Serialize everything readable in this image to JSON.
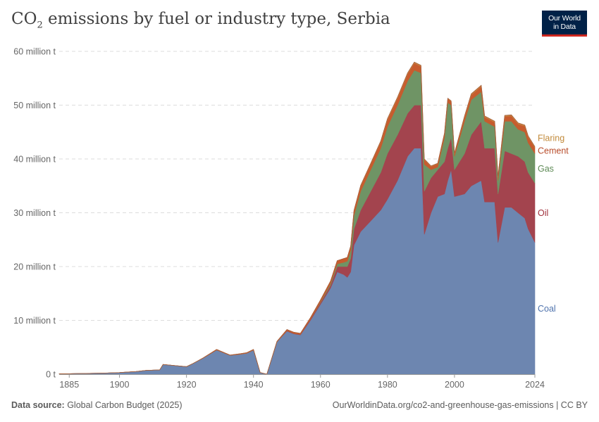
{
  "header": {
    "title_before": "CO",
    "title_sub": "2",
    "title_after": " emissions by fuel or industry type, Serbia",
    "logo_line1": "Our World",
    "logo_line2": "in Data"
  },
  "footer": {
    "source_label": "Data source:",
    "source_value": " Global Carbon Budget (2025)",
    "url": "OurWorldinData.org/co2-and-greenhouse-gas-emissions | CC BY"
  },
  "colors": {
    "coal": "#6d86b0",
    "oil": "#a3444e",
    "gas": "#6f9465",
    "cement": "#c75c2e",
    "flaring": "#c7813f",
    "flaring_label": "#c28a3a",
    "cement_label": "#b84c2a",
    "gas_label": "#5d8a55",
    "oil_label": "#a0303c",
    "coal_label": "#4f73ad",
    "grid": "#dddddd",
    "axis_text": "#666666"
  },
  "chart_data": {
    "type": "area",
    "stacked": true,
    "ylim": [
      0,
      60
    ],
    "xlim": [
      1882,
      2024
    ],
    "yticks": [
      {
        "value": 0,
        "label": "0 t"
      },
      {
        "value": 10,
        "label": "10 million t"
      },
      {
        "value": 20,
        "label": "20 million t"
      },
      {
        "value": 30,
        "label": "30 million t"
      },
      {
        "value": 40,
        "label": "40 million t"
      },
      {
        "value": 50,
        "label": "50 million t"
      },
      {
        "value": 60,
        "label": "60 million t"
      }
    ],
    "xticks": [
      {
        "value": 1885,
        "label": "1885"
      },
      {
        "value": 1900,
        "label": "1900"
      },
      {
        "value": 1920,
        "label": "1920"
      },
      {
        "value": 1940,
        "label": "1940"
      },
      {
        "value": 1960,
        "label": "1960"
      },
      {
        "value": 1980,
        "label": "1980"
      },
      {
        "value": 2000,
        "label": "2000"
      },
      {
        "value": 2024,
        "label": "2024"
      }
    ],
    "grid": "horizontal",
    "legend": "right inline labels",
    "x": [
      1882,
      1890,
      1895,
      1900,
      1905,
      1908,
      1912,
      1913,
      1920,
      1922,
      1925,
      1929,
      1933,
      1936,
      1938,
      1940,
      1942,
      1944,
      1945,
      1947,
      1950,
      1952,
      1954,
      1957,
      1960,
      1963,
      1965,
      1967,
      1968,
      1969,
      1970,
      1972,
      1975,
      1978,
      1980,
      1983,
      1986,
      1988,
      1990,
      1991,
      1993,
      1995,
      1997,
      1998,
      1999,
      2000,
      2003,
      2005,
      2008,
      2009,
      2012,
      2013,
      2015,
      2017,
      2019,
      2021,
      2022,
      2024
    ],
    "series": [
      {
        "name": "Coal",
        "key": "coal",
        "values": [
          0.05,
          0.15,
          0.2,
          0.3,
          0.5,
          0.7,
          0.8,
          1.8,
          1.4,
          2.0,
          3.0,
          4.5,
          3.5,
          3.7,
          3.9,
          4.5,
          0.3,
          0.0,
          2.0,
          6.0,
          8.0,
          7.5,
          7.3,
          10.0,
          13.0,
          16.0,
          19.0,
          18.5,
          18.0,
          19.0,
          24.0,
          26.5,
          28.5,
          30.5,
          32.5,
          36.0,
          40.5,
          42.0,
          42.0,
          26.0,
          30.0,
          33.0,
          33.5,
          36.0,
          38.0,
          33.0,
          33.5,
          35.0,
          36.0,
          32.0,
          32.0,
          24.5,
          31.0,
          31.0,
          30.0,
          29.0,
          27.0,
          24.5
        ]
      },
      {
        "name": "Oil",
        "key": "oil",
        "values": [
          0,
          0,
          0,
          0,
          0,
          0,
          0,
          0,
          0,
          0,
          0,
          0,
          0,
          0,
          0,
          0,
          0,
          0,
          0,
          0,
          0.1,
          0.1,
          0.1,
          0.2,
          0.3,
          0.5,
          1.0,
          1.5,
          2.0,
          2.5,
          3.0,
          4.0,
          5.5,
          7.0,
          8.5,
          8.5,
          8.0,
          8.0,
          8.0,
          8.0,
          6.5,
          5.0,
          6.0,
          6.0,
          6.0,
          5.0,
          7.5,
          9.5,
          11.0,
          10.0,
          10.0,
          9.0,
          10.5,
          10.0,
          10.5,
          10.5,
          10.5,
          11.0
        ]
      },
      {
        "name": "Gas",
        "key": "gas",
        "values": [
          0,
          0,
          0,
          0,
          0,
          0,
          0,
          0,
          0,
          0,
          0,
          0,
          0,
          0,
          0,
          0,
          0,
          0,
          0,
          0,
          0,
          0,
          0,
          0,
          0.1,
          0.3,
          0.5,
          0.8,
          1.0,
          1.5,
          2.5,
          3.5,
          4.0,
          4.5,
          5.0,
          5.5,
          6.0,
          6.5,
          6.0,
          5.0,
          1.5,
          0.5,
          4.5,
          8.5,
          6.0,
          2.5,
          6.0,
          6.5,
          5.5,
          5.0,
          4.0,
          2.5,
          5.5,
          6.0,
          5.0,
          5.5,
          5.5,
          5.5
        ]
      },
      {
        "name": "Cement",
        "key": "cement",
        "values": [
          0,
          0,
          0,
          0,
          0,
          0,
          0,
          0,
          0,
          0,
          0.05,
          0.1,
          0.05,
          0.1,
          0.1,
          0.1,
          0,
          0,
          0.05,
          0.1,
          0.2,
          0.2,
          0.2,
          0.3,
          0.4,
          0.5,
          0.6,
          0.7,
          0.7,
          0.8,
          0.9,
          1.0,
          1.1,
          1.2,
          1.3,
          1.3,
          1.3,
          1.3,
          1.2,
          0.9,
          0.6,
          0.6,
          0.7,
          0.7,
          0.7,
          0.5,
          0.8,
          0.9,
          1.0,
          0.8,
          0.8,
          0.7,
          0.9,
          1.0,
          1.0,
          1.1,
          1.1,
          1.1
        ]
      },
      {
        "name": "Flaring",
        "key": "flaring",
        "values": [
          0,
          0,
          0,
          0,
          0,
          0,
          0,
          0,
          0,
          0,
          0,
          0,
          0,
          0,
          0,
          0,
          0,
          0,
          0,
          0,
          0,
          0,
          0,
          0,
          0,
          0,
          0,
          0,
          0,
          0,
          0.05,
          0.1,
          0.1,
          0.15,
          0.2,
          0.2,
          0.2,
          0.2,
          0.2,
          0.1,
          0.1,
          0.1,
          0.1,
          0.1,
          0.1,
          0.1,
          0.2,
          0.2,
          0.2,
          0.2,
          0.2,
          0.1,
          0.2,
          0.2,
          0.2,
          0.2,
          0.2,
          0.2
        ]
      }
    ],
    "labels": [
      {
        "key": "flaring",
        "text": "Flaring"
      },
      {
        "key": "cement",
        "text": "Cement"
      },
      {
        "key": "gas",
        "text": "Gas"
      },
      {
        "key": "oil",
        "text": "Oil"
      },
      {
        "key": "coal",
        "text": "Coal"
      }
    ]
  }
}
